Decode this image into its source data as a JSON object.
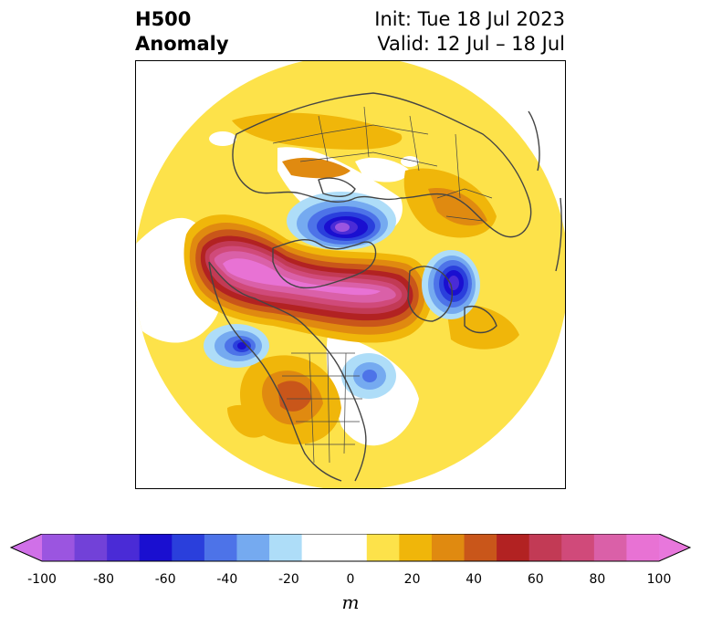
{
  "title": {
    "left_line1": "H500",
    "left_line2": "Anomaly",
    "right_line1": "Init: Tue 18 Jul 2023",
    "right_line2": "Valid: 12 Jul – 18 Jul"
  },
  "colorbar": {
    "unit": "m",
    "ticks": [
      "-100",
      "-80",
      "-60",
      "-40",
      "-20",
      "0",
      "20",
      "40",
      "60",
      "80",
      "100"
    ],
    "levels": [
      -100,
      -90,
      -80,
      -70,
      -60,
      -50,
      -40,
      -30,
      -20,
      -10,
      10,
      20,
      30,
      40,
      50,
      60,
      70,
      80,
      90,
      100
    ],
    "colors": [
      "#9b55e0",
      "#7241d8",
      "#4a2bd6",
      "#1a0fd0",
      "#2a3fdc",
      "#4d73e8",
      "#75aaf0",
      "#aeddf8",
      "#ffffff",
      "#ffffff",
      "#fde24a",
      "#f0b60a",
      "#e08a10",
      "#c9561a",
      "#b22222",
      "#c23a55",
      "#d04a7a",
      "#da60a8",
      "#e872d4"
    ],
    "under_color": "#d070e8",
    "over_color": "#e877dc"
  },
  "colors": {
    "land_outline": "#444444",
    "frame": "#000000"
  }
}
